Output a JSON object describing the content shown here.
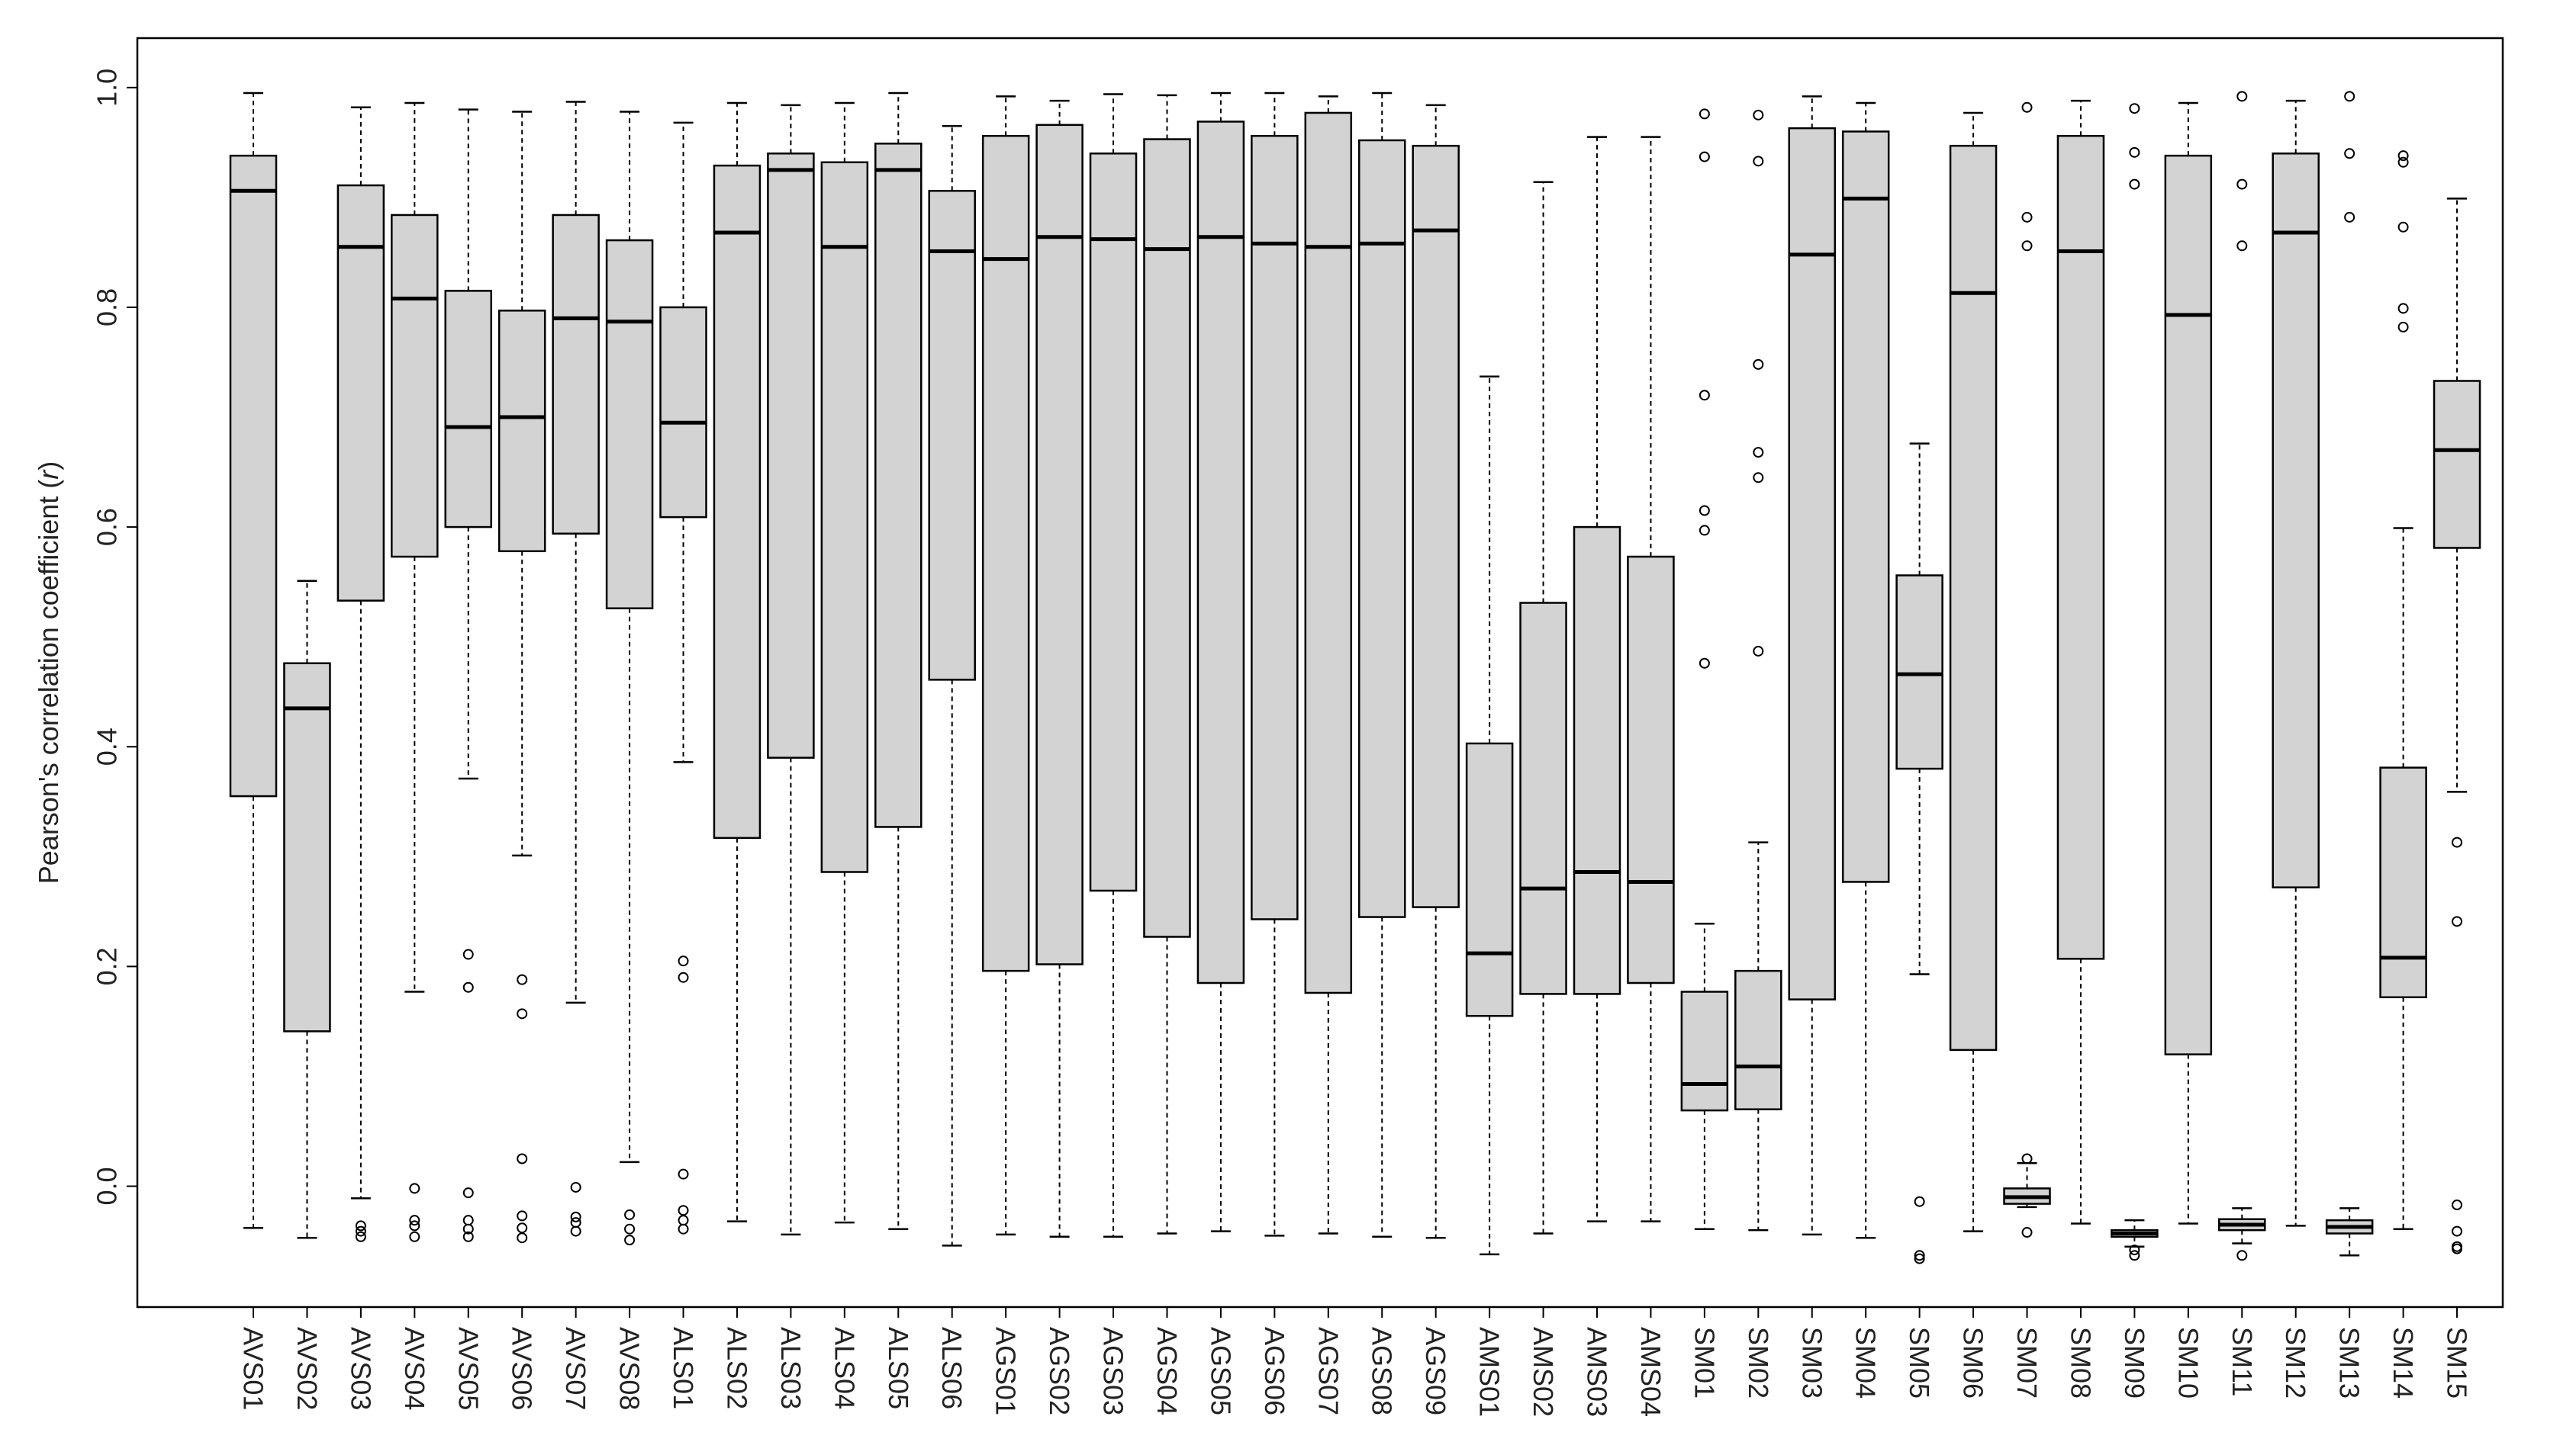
{
  "chart_data": {
    "type": "boxplot",
    "title": "",
    "xlabel": "",
    "ylabel": {
      "main": "Pearson's correlation coefficient (",
      "italic": "r",
      "close": ")"
    },
    "ylim": [
      -0.11,
      1.045
    ],
    "yticks": [
      0.0,
      0.2,
      0.4,
      0.6,
      0.8,
      1.0
    ],
    "ytick_labels": [
      "0.0",
      "0.2",
      "0.4",
      "0.6",
      "0.8",
      "1.0"
    ],
    "grid": false,
    "box_color": "#d3d3d3",
    "line_color": "#000000",
    "boxes": [
      {
        "name": "AVS01",
        "lw": -0.038,
        "q1": 0.355,
        "med": 0.906,
        "q3": 0.938,
        "uw": 0.995,
        "out": []
      },
      {
        "name": "AVS02",
        "lw": -0.047,
        "q1": 0.141,
        "med": 0.435,
        "q3": 0.476,
        "uw": 0.551,
        "out": []
      },
      {
        "name": "AVS03",
        "lw": -0.011,
        "q1": 0.533,
        "med": 0.855,
        "q3": 0.911,
        "uw": 0.982,
        "out": [
          -0.036,
          -0.041,
          -0.046
        ]
      },
      {
        "name": "AVS04",
        "lw": 0.177,
        "q1": 0.573,
        "med": 0.808,
        "q3": 0.884,
        "uw": 0.986,
        "out": [
          -0.002,
          -0.031,
          -0.036,
          -0.046
        ]
      },
      {
        "name": "AVS05",
        "lw": 0.371,
        "q1": 0.6,
        "med": 0.691,
        "q3": 0.815,
        "uw": 0.98,
        "out": [
          0.211,
          0.181,
          -0.006,
          -0.031,
          -0.039,
          -0.046
        ]
      },
      {
        "name": "AVS06",
        "lw": 0.301,
        "q1": 0.578,
        "med": 0.7,
        "q3": 0.797,
        "uw": 0.978,
        "out": [
          0.188,
          0.157,
          0.025,
          -0.027,
          -0.038,
          -0.047
        ]
      },
      {
        "name": "AVS07",
        "lw": 0.167,
        "q1": 0.594,
        "med": 0.79,
        "q3": 0.884,
        "uw": 0.987,
        "out": [
          -0.001,
          -0.028,
          -0.033,
          -0.041
        ]
      },
      {
        "name": "AVS08",
        "lw": 0.022,
        "q1": 0.526,
        "med": 0.787,
        "q3": 0.861,
        "uw": 0.978,
        "out": [
          -0.026,
          -0.039,
          -0.049
        ]
      },
      {
        "name": "ALS01",
        "lw": 0.386,
        "q1": 0.609,
        "med": 0.695,
        "q3": 0.8,
        "uw": 0.968,
        "out": [
          0.205,
          0.19,
          0.011,
          -0.022,
          -0.031,
          -0.039
        ]
      },
      {
        "name": "ALS02",
        "lw": -0.032,
        "q1": 0.317,
        "med": 0.868,
        "q3": 0.929,
        "uw": 0.986,
        "out": []
      },
      {
        "name": "ALS03",
        "lw": -0.044,
        "q1": 0.39,
        "med": 0.925,
        "q3": 0.94,
        "uw": 0.984,
        "out": []
      },
      {
        "name": "ALS04",
        "lw": -0.033,
        "q1": 0.286,
        "med": 0.855,
        "q3": 0.932,
        "uw": 0.986,
        "out": []
      },
      {
        "name": "ALS05",
        "lw": -0.039,
        "q1": 0.327,
        "med": 0.925,
        "q3": 0.949,
        "uw": 0.995,
        "out": []
      },
      {
        "name": "ALS06",
        "lw": -0.054,
        "q1": 0.461,
        "med": 0.851,
        "q3": 0.906,
        "uw": 0.965,
        "out": []
      },
      {
        "name": "AGS01",
        "lw": -0.044,
        "q1": 0.196,
        "med": 0.844,
        "q3": 0.956,
        "uw": 0.992,
        "out": []
      },
      {
        "name": "AGS02",
        "lw": -0.046,
        "q1": 0.202,
        "med": 0.864,
        "q3": 0.966,
        "uw": 0.988,
        "out": []
      },
      {
        "name": "AGS03",
        "lw": -0.046,
        "q1": 0.269,
        "med": 0.862,
        "q3": 0.94,
        "uw": 0.994,
        "out": []
      },
      {
        "name": "AGS04",
        "lw": -0.043,
        "q1": 0.227,
        "med": 0.853,
        "q3": 0.953,
        "uw": 0.993,
        "out": []
      },
      {
        "name": "AGS05",
        "lw": -0.041,
        "q1": 0.185,
        "med": 0.864,
        "q3": 0.969,
        "uw": 0.995,
        "out": []
      },
      {
        "name": "AGS06",
        "lw": -0.045,
        "q1": 0.243,
        "med": 0.858,
        "q3": 0.956,
        "uw": 0.995,
        "out": []
      },
      {
        "name": "AGS07",
        "lw": -0.043,
        "q1": 0.176,
        "med": 0.855,
        "q3": 0.977,
        "uw": 0.992,
        "out": []
      },
      {
        "name": "AGS08",
        "lw": -0.046,
        "q1": 0.245,
        "med": 0.858,
        "q3": 0.952,
        "uw": 0.995,
        "out": []
      },
      {
        "name": "AGS09",
        "lw": -0.047,
        "q1": 0.254,
        "med": 0.87,
        "q3": 0.947,
        "uw": 0.984,
        "out": []
      },
      {
        "name": "AMS01",
        "lw": -0.062,
        "q1": 0.155,
        "med": 0.212,
        "q3": 0.403,
        "uw": 0.737,
        "out": []
      },
      {
        "name": "AMS02",
        "lw": -0.043,
        "q1": 0.175,
        "med": 0.271,
        "q3": 0.531,
        "uw": 0.914,
        "out": []
      },
      {
        "name": "AMS03",
        "lw": -0.032,
        "q1": 0.175,
        "med": 0.286,
        "q3": 0.6,
        "uw": 0.955,
        "out": []
      },
      {
        "name": "AMS04",
        "lw": -0.032,
        "q1": 0.185,
        "med": 0.277,
        "q3": 0.573,
        "uw": 0.955,
        "out": []
      },
      {
        "name": "SM01",
        "lw": -0.039,
        "q1": 0.069,
        "med": 0.093,
        "q3": 0.177,
        "uw": 0.239,
        "out": [
          0.976,
          0.937,
          0.72,
          0.615,
          0.597,
          0.476
        ]
      },
      {
        "name": "SM02",
        "lw": -0.04,
        "q1": 0.07,
        "med": 0.109,
        "q3": 0.196,
        "uw": 0.313,
        "out": [
          0.975,
          0.933,
          0.748,
          0.668,
          0.645,
          0.487
        ]
      },
      {
        "name": "SM03",
        "lw": -0.044,
        "q1": 0.17,
        "med": 0.848,
        "q3": 0.963,
        "uw": 0.992,
        "out": []
      },
      {
        "name": "SM04",
        "lw": -0.047,
        "q1": 0.277,
        "med": 0.899,
        "q3": 0.96,
        "uw": 0.986,
        "out": []
      },
      {
        "name": "SM05",
        "lw": 0.193,
        "q1": 0.38,
        "med": 0.466,
        "q3": 0.556,
        "uw": 0.676,
        "out": [
          -0.014,
          -0.063,
          -0.066
        ]
      },
      {
        "name": "SM06",
        "lw": -0.041,
        "q1": 0.124,
        "med": 0.813,
        "q3": 0.947,
        "uw": 0.977,
        "out": []
      },
      {
        "name": "SM07",
        "lw": -0.019,
        "q1": -0.016,
        "med": -0.01,
        "q3": -0.002,
        "uw": 0.021,
        "out": [
          0.982,
          0.882,
          0.856,
          0.025,
          -0.042
        ]
      },
      {
        "name": "SM08",
        "lw": -0.034,
        "q1": 0.207,
        "med": 0.851,
        "q3": 0.956,
        "uw": 0.988,
        "out": []
      },
      {
        "name": "SM09",
        "lw": -0.055,
        "q1": -0.046,
        "med": -0.043,
        "q3": -0.04,
        "uw": -0.031,
        "out": [
          0.981,
          0.941,
          0.912,
          -0.058,
          -0.063
        ]
      },
      {
        "name": "SM10",
        "lw": -0.034,
        "q1": 0.12,
        "med": 0.793,
        "q3": 0.938,
        "uw": 0.986,
        "out": []
      },
      {
        "name": "SM11",
        "lw": -0.052,
        "q1": -0.04,
        "med": -0.035,
        "q3": -0.03,
        "uw": -0.02,
        "out": [
          0.992,
          0.912,
          0.856,
          -0.063
        ]
      },
      {
        "name": "SM12",
        "lw": -0.036,
        "q1": 0.272,
        "med": 0.868,
        "q3": 0.94,
        "uw": 0.988,
        "out": []
      },
      {
        "name": "SM13",
        "lw": -0.063,
        "q1": -0.043,
        "med": -0.037,
        "q3": -0.031,
        "uw": -0.02,
        "out": [
          0.992,
          0.94,
          0.882
        ]
      },
      {
        "name": "SM14",
        "lw": -0.039,
        "q1": 0.172,
        "med": 0.208,
        "q3": 0.381,
        "uw": 0.599,
        "out": [
          0.938,
          0.932,
          0.873,
          0.799,
          0.782
        ]
      },
      {
        "name": "SM15",
        "lw": 0.359,
        "q1": 0.581,
        "med": 0.67,
        "q3": 0.733,
        "uw": 0.899,
        "out": [
          0.313,
          0.241,
          -0.017,
          -0.041,
          -0.055,
          -0.057
        ]
      }
    ]
  }
}
